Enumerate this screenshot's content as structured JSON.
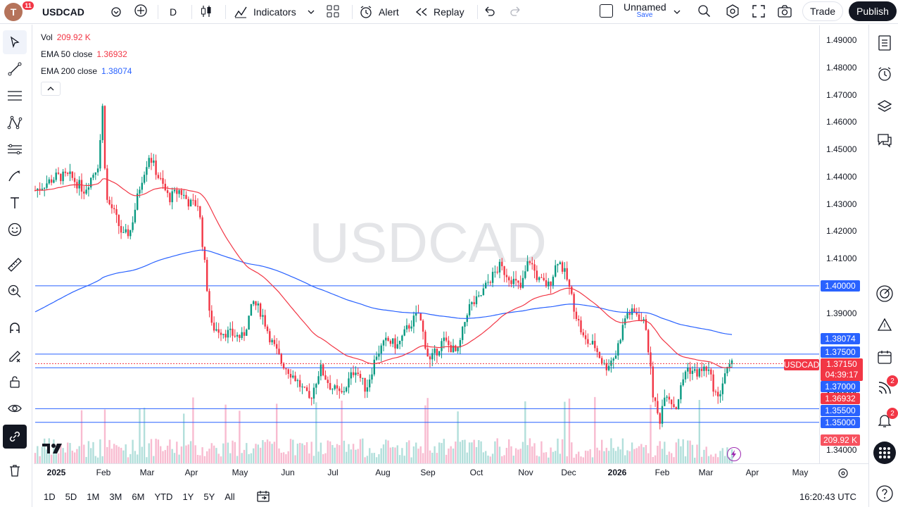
{
  "topbar": {
    "avatar_letter": "T",
    "avatar_badge": "11",
    "symbol": "USDCAD",
    "interval": "D",
    "indicators_label": "Indicators",
    "alert_label": "Alert",
    "replay_label": "Replay",
    "layout_name": "Unnamed",
    "save_label": "Save",
    "trade_label": "Trade",
    "publish_label": "Publish"
  },
  "legend": {
    "vol_label": "Vol",
    "vol_value": "209.92 K",
    "ema50_label": "EMA 50 close",
    "ema50_value": "1.36932",
    "ema200_label": "EMA 200 close",
    "ema200_value": "1.38074"
  },
  "watermark": "USDCAD",
  "price_axis": {
    "ticks": [
      "1.49000",
      "1.48000",
      "1.47000",
      "1.46000",
      "1.45000",
      "1.44000",
      "1.43000",
      "1.42000",
      "1.41000",
      "1.40000",
      "1.39000",
      "1.38000",
      "1.37000",
      "1.36000",
      "1.35000",
      "1.34000"
    ],
    "labels": {
      "level_140": "1.40000",
      "ema200": "1.38074",
      "level_1375": "1.37500",
      "symbol_tag": "USDCAD",
      "last_price": "1.37150",
      "countdown": "04:39:17",
      "level_137": "1.37000",
      "ema50": "1.36932",
      "level_1355": "1.35500",
      "level_135": "1.35000",
      "volume": "209.92 K",
      "bottom_tick": "1.34000"
    }
  },
  "time_axis": [
    "2025",
    "Feb",
    "Mar",
    "Apr",
    "May",
    "Jun",
    "Jul",
    "Aug",
    "Sep",
    "Oct",
    "Nov",
    "Dec",
    "2026",
    "Feb",
    "Mar",
    "Apr",
    "May"
  ],
  "bottombar": {
    "ranges": [
      "1D",
      "5D",
      "1M",
      "3M",
      "6M",
      "YTD",
      "1Y",
      "5Y",
      "All"
    ],
    "clock": "16:20:43 UTC"
  },
  "right_badges": {
    "ideas": "2",
    "alerts": "2"
  },
  "colors": {
    "up": "#089981",
    "down": "#f23645",
    "ema50": "#f23645",
    "ema200": "#2962ff",
    "hline": "#2962ff"
  },
  "chart_data": {
    "type": "candlestick",
    "ylim": [
      1.34,
      1.49
    ],
    "ema50_last": 1.36932,
    "ema200_last": 1.38074,
    "last_price": 1.3715,
    "horizontal_levels": [
      1.4,
      1.375,
      1.37,
      1.355,
      1.35
    ],
    "anchor_closes": [
      {
        "date": "2025-01",
        "close": 1.44
      },
      {
        "date": "2025-02-03",
        "close": 1.47
      },
      {
        "date": "2025-02-14",
        "close": 1.42
      },
      {
        "date": "2025-03",
        "close": 1.44
      },
      {
        "date": "2025-04-01",
        "close": 1.43
      },
      {
        "date": "2025-04-15",
        "close": 1.385
      },
      {
        "date": "2025-05-15",
        "close": 1.39
      },
      {
        "date": "2025-06",
        "close": 1.365
      },
      {
        "date": "2025-07-01",
        "close": 1.36
      },
      {
        "date": "2025-08",
        "close": 1.38
      },
      {
        "date": "2025-09",
        "close": 1.385
      },
      {
        "date": "2025-10",
        "close": 1.4
      },
      {
        "date": "2025-11",
        "close": 1.41
      },
      {
        "date": "2025-12",
        "close": 1.375
      },
      {
        "date": "2026-01",
        "close": 1.39
      },
      {
        "date": "2026-02",
        "close": 1.355
      },
      {
        "date": "2026-03",
        "close": 1.3715
      }
    ]
  }
}
